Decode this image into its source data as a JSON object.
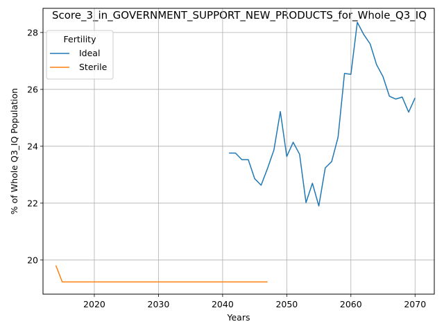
{
  "chart_data": {
    "type": "line",
    "title": "Score_3_in_GOVERNMENT_SUPPORT_NEW_PRODUCTS_for_Whole_Q3_IQ",
    "xlabel": "Years",
    "ylabel": "% of Whole Q3_IQ Population",
    "xlim": [
      2012,
      2073
    ],
    "ylim": [
      18.8,
      28.85
    ],
    "xticks": [
      2020,
      2030,
      2040,
      2050,
      2060,
      2070
    ],
    "yticks": [
      20,
      22,
      24,
      26,
      28
    ],
    "grid": true,
    "legend": {
      "title": "Fertility",
      "placement": "upper-left"
    },
    "series": [
      {
        "name": "Ideal",
        "color": "#1f77b4",
        "x": [
          2041,
          2042,
          2043,
          2044,
          2045,
          2046,
          2047,
          2048,
          2049,
          2050,
          2051,
          2052,
          2053,
          2054,
          2055,
          2056,
          2057,
          2058,
          2059,
          2060,
          2061,
          2062,
          2063,
          2064,
          2065,
          2066,
          2067,
          2068,
          2069,
          2070
        ],
        "y": [
          23.76,
          23.76,
          23.53,
          23.53,
          22.86,
          22.63,
          23.22,
          23.87,
          25.22,
          23.64,
          24.14,
          23.72,
          22.02,
          22.7,
          21.9,
          23.24,
          23.46,
          24.32,
          26.56,
          26.53,
          28.36,
          27.93,
          27.6,
          26.87,
          26.45,
          25.76,
          25.66,
          25.73,
          25.2,
          25.7
        ]
      },
      {
        "name": "Sterile",
        "color": "#ff7f0e",
        "x": [
          2014,
          2015,
          2016,
          2017,
          2018,
          2019,
          2020,
          2021,
          2022,
          2023,
          2024,
          2025,
          2026,
          2027,
          2028,
          2029,
          2030,
          2031,
          2032,
          2033,
          2034,
          2035,
          2036,
          2037,
          2038,
          2039,
          2040,
          2041,
          2042,
          2043,
          2044,
          2045,
          2046,
          2047
        ],
        "y": [
          19.81,
          19.23,
          19.23,
          19.23,
          19.23,
          19.23,
          19.23,
          19.23,
          19.23,
          19.23,
          19.23,
          19.23,
          19.23,
          19.23,
          19.23,
          19.23,
          19.23,
          19.23,
          19.23,
          19.23,
          19.23,
          19.23,
          19.23,
          19.23,
          19.23,
          19.23,
          19.23,
          19.23,
          19.23,
          19.23,
          19.23,
          19.23,
          19.23,
          19.23
        ]
      }
    ]
  },
  "colors": {
    "grid": "#b0b0b0",
    "axes": "#000000",
    "legend_border": "#cccccc"
  }
}
